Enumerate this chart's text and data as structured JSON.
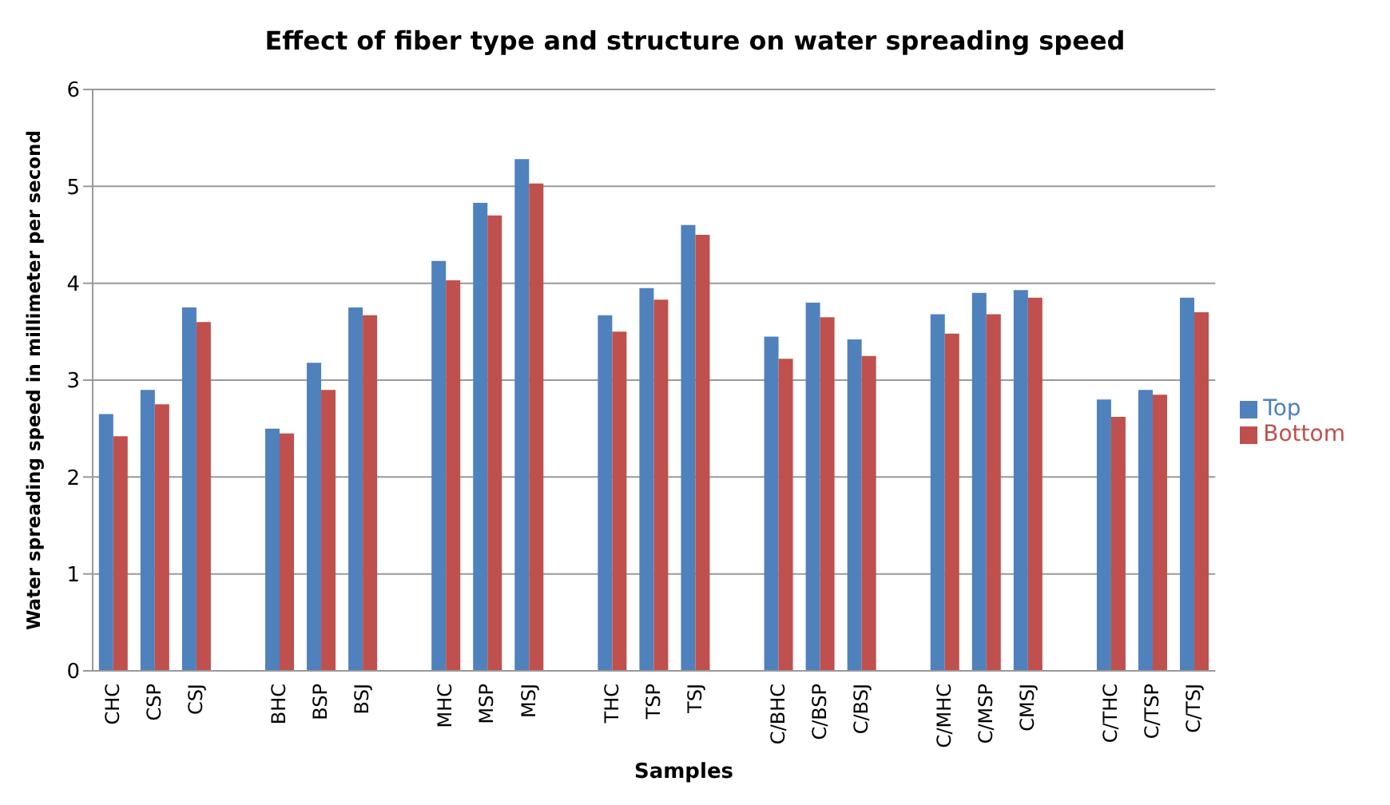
{
  "chart_data": {
    "type": "bar",
    "title": "Effect of fiber type and structure on water spreading speed",
    "xlabel": "Samples",
    "ylabel": "Water spreading speed in millimeter per second",
    "categories": [
      "CHC",
      "CSP",
      "CSJ",
      null,
      "BHC",
      "BSP",
      "BSJ",
      null,
      "MHC",
      "MSP",
      "MSJ",
      null,
      "THC",
      "TSP",
      "TSJ",
      null,
      "C/BHC",
      "C/BSP",
      "C/BSJ",
      null,
      "C/MHC",
      "C/MSP",
      "CMSJ",
      null,
      "C/THC",
      "C/TSP",
      "C/TSJ"
    ],
    "series": [
      {
        "name": "Top",
        "color": "#4f81bd",
        "values": [
          2.65,
          2.9,
          3.75,
          null,
          2.5,
          3.18,
          3.75,
          null,
          4.23,
          4.83,
          5.28,
          null,
          3.67,
          3.95,
          4.6,
          null,
          3.45,
          3.8,
          3.42,
          null,
          3.68,
          3.9,
          3.93,
          null,
          2.8,
          2.9,
          3.85
        ]
      },
      {
        "name": "Bottom",
        "color": "#c0504d",
        "values": [
          2.42,
          2.75,
          3.6,
          null,
          2.45,
          2.9,
          3.67,
          null,
          4.03,
          4.7,
          5.03,
          null,
          3.5,
          3.83,
          4.5,
          null,
          3.22,
          3.65,
          3.25,
          null,
          3.48,
          3.68,
          3.85,
          null,
          2.62,
          2.85,
          3.7
        ]
      }
    ],
    "ylim": [
      0,
      6
    ],
    "yticks": [
      0,
      1,
      2,
      3,
      4,
      5,
      6
    ],
    "grid": "y",
    "legend": "right"
  }
}
